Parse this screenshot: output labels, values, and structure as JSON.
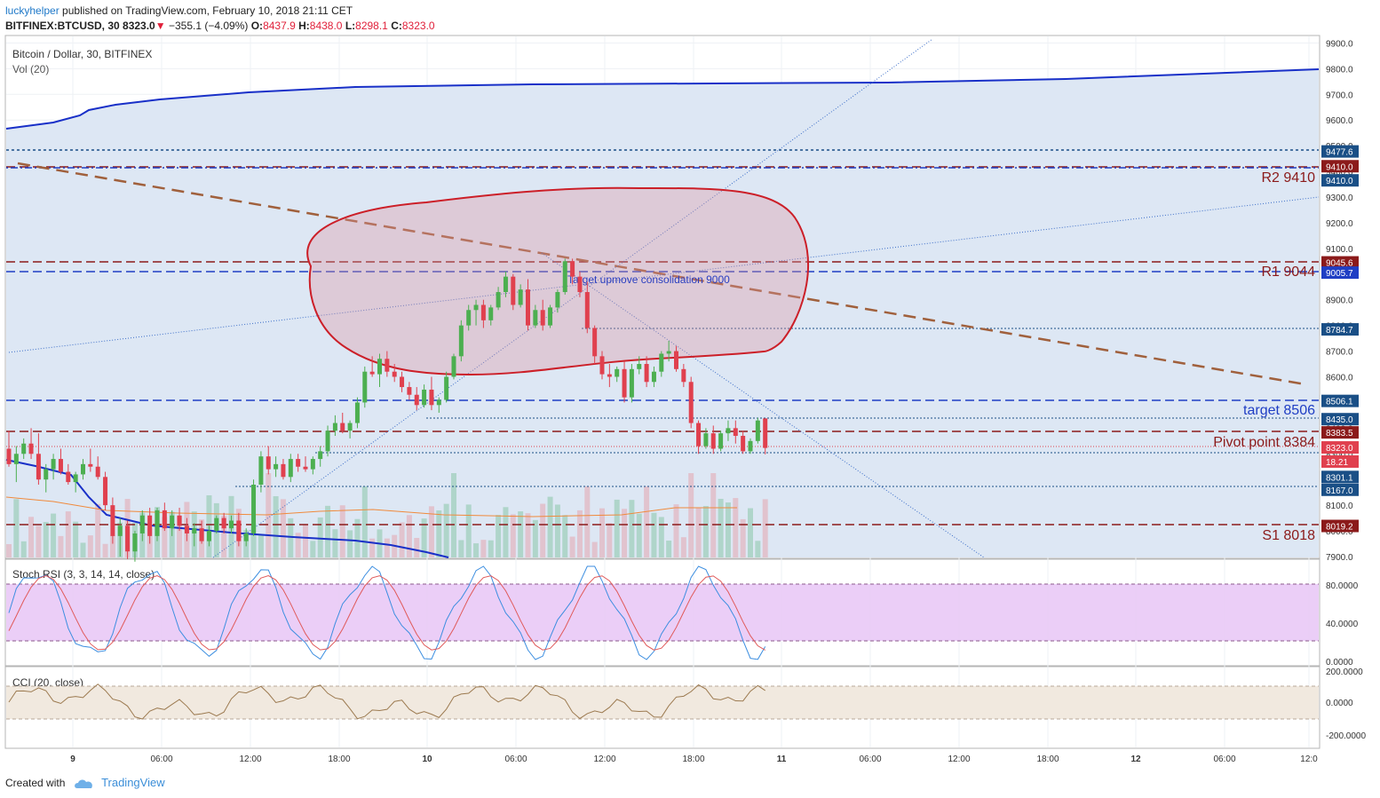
{
  "header": {
    "author": "luckyhelper",
    "published": "published on TradingView.com, February 10, 2018 21:11 CET",
    "symbol_line": "BITFINEX:BTCUSD, 30",
    "last": "8323.0",
    "arrow": "▼",
    "change": "−355.1 (−4.09%)",
    "o_label": "O:",
    "o": "8437.9",
    "h_label": "H:",
    "h": "8438.0",
    "l_label": "L:",
    "l": "8298.1",
    "c_label": "C:",
    "c": "8323.0"
  },
  "legend": {
    "title": "Bitcoin / Dollar, 30, BITFINEX",
    "vol": "Vol (20)"
  },
  "colors": {
    "up": "#4caf50",
    "down": "#e0404e",
    "band": "#dbe6f3",
    "vwap": "#1930c8",
    "ellipse": "#cc1f28"
  },
  "annotations": {
    "ellipse_text": "Target upmove consolidation 9000",
    "r2": "R2 9410",
    "r1": "R1 9044",
    "target": "target 8506",
    "pivot": "Pivot point 8384",
    "s1": "S1 8018"
  },
  "price_axis": {
    "ticks": [
      "9900.0",
      "9800.0",
      "9700.0",
      "9600.0",
      "9500.0",
      "9400.0",
      "9300.0",
      "9200.0",
      "9100.0",
      "9000.0",
      "8900.0",
      "8800.0",
      "8700.0",
      "8600.0",
      "8500.0",
      "8400.0",
      "8300.0",
      "8200.0",
      "8100.0",
      "8000.0",
      "7900.0"
    ],
    "badges": [
      {
        "text": "9477.6",
        "color": "#1a4f86",
        "price": 9477.6
      },
      {
        "text": "9410.0",
        "color": "#8b1a1a",
        "price": 9420
      },
      {
        "text": "9410.0",
        "color": "#1a4f86",
        "price": 9365
      },
      {
        "text": "9045.6",
        "color": "#8b1a1a",
        "price": 9045.6
      },
      {
        "text": "9005.7",
        "color": "#1f3ec4",
        "price": 9005.7
      },
      {
        "text": "8784.7",
        "color": "#1a4f86",
        "price": 8784.7
      },
      {
        "text": "8506.1",
        "color": "#1a4f86",
        "price": 8506.1
      },
      {
        "text": "8435.0",
        "color": "#1a4f86",
        "price": 8435
      },
      {
        "text": "8383.5",
        "color": "#8b1a1a",
        "price": 8383.5
      },
      {
        "text": "8323.0",
        "color": "#e0404e",
        "price": 8325
      },
      {
        "text": "18.21",
        "color": "#e0404e",
        "price": 8270
      },
      {
        "text": "8301.1",
        "color": "#1a4f86",
        "price": 8210
      },
      {
        "text": "8167.0",
        "color": "#1a4f86",
        "price": 8160
      },
      {
        "text": "8019.2",
        "color": "#8b1a1a",
        "price": 8019.2
      }
    ]
  },
  "stoch": {
    "title": "Stoch RSI (3, 3, 14, 14, close)",
    "ticks": [
      "80.0000",
      "40.0000",
      "0.0000"
    ]
  },
  "cci": {
    "title": "CCI (20, close)",
    "ticks": [
      "200.0000",
      "0.0000",
      "-200.0000"
    ]
  },
  "time_axis": {
    "labels": [
      {
        "t": "9",
        "bold": true
      },
      {
        "t": "06:00",
        "bold": false
      },
      {
        "t": "12:00",
        "bold": false
      },
      {
        "t": "18:00",
        "bold": false
      },
      {
        "t": "10",
        "bold": true
      },
      {
        "t": "06:00",
        "bold": false
      },
      {
        "t": "12:00",
        "bold": false
      },
      {
        "t": "18:00",
        "bold": false
      },
      {
        "t": "11",
        "bold": true
      },
      {
        "t": "06:00",
        "bold": false
      },
      {
        "t": "12:00",
        "bold": false
      },
      {
        "t": "18:00",
        "bold": false
      },
      {
        "t": "12",
        "bold": true
      },
      {
        "t": "06:00",
        "bold": false
      },
      {
        "t": "12:0",
        "bold": false
      }
    ]
  },
  "footer": {
    "created": "Created with",
    "brand": "TradingView"
  },
  "chart_data": {
    "type": "candlestick",
    "title": "Bitcoin / Dollar, 30, BITFINEX",
    "ylim": [
      7900,
      9950
    ],
    "candles_ohlc": [
      [
        8320,
        8390,
        8250,
        8260
      ],
      [
        8260,
        8330,
        8190,
        8300
      ],
      [
        8300,
        8360,
        8280,
        8340
      ],
      [
        8340,
        8400,
        8280,
        8300
      ],
      [
        8300,
        8380,
        8180,
        8200
      ],
      [
        8200,
        8260,
        8150,
        8240
      ],
      [
        8240,
        8300,
        8200,
        8280
      ],
      [
        8280,
        8320,
        8220,
        8230
      ],
      [
        8230,
        8260,
        8180,
        8190
      ],
      [
        8190,
        8230,
        8150,
        8220
      ],
      [
        8220,
        8280,
        8200,
        8260
      ],
      [
        8260,
        8320,
        8230,
        8250
      ],
      [
        8250,
        8290,
        8200,
        8210
      ],
      [
        8210,
        8230,
        8080,
        8100
      ],
      [
        8100,
        8130,
        7950,
        7980
      ],
      [
        7980,
        8050,
        7900,
        8020
      ],
      [
        8020,
        8040,
        7890,
        7920
      ],
      [
        7920,
        8000,
        7880,
        7990
      ],
      [
        7990,
        8080,
        7960,
        8060
      ],
      [
        8060,
        8090,
        7950,
        7980
      ],
      [
        7980,
        8090,
        7960,
        8080
      ],
      [
        8080,
        8110,
        8000,
        8010
      ],
      [
        8010,
        8080,
        7980,
        8060
      ],
      [
        8060,
        8090,
        8000,
        8020
      ],
      [
        8020,
        8050,
        7960,
        7990
      ],
      [
        7990,
        8030,
        7940,
        8010
      ],
      [
        8010,
        8040,
        7950,
        7960
      ],
      [
        7960,
        8020,
        7940,
        8000
      ],
      [
        8000,
        8060,
        7990,
        8050
      ],
      [
        8050,
        8070,
        7990,
        8010
      ],
      [
        8010,
        8060,
        7990,
        8040
      ],
      [
        8040,
        8070,
        7940,
        7960
      ],
      [
        7960,
        8010,
        7940,
        7990
      ],
      [
        7990,
        8200,
        7980,
        8180
      ],
      [
        8180,
        8310,
        8150,
        8290
      ],
      [
        8290,
        8330,
        8220,
        8240
      ],
      [
        8240,
        8290,
        8210,
        8260
      ],
      [
        8260,
        8280,
        8200,
        8210
      ],
      [
        8210,
        8300,
        8190,
        8280
      ],
      [
        8280,
        8300,
        8230,
        8250
      ],
      [
        8250,
        8290,
        8230,
        8240
      ],
      [
        8240,
        8290,
        8220,
        8280
      ],
      [
        8280,
        8330,
        8250,
        8310
      ],
      [
        8310,
        8410,
        8290,
        8390
      ],
      [
        8390,
        8450,
        8370,
        8420
      ],
      [
        8420,
        8460,
        8380,
        8390
      ],
      [
        8390,
        8430,
        8360,
        8420
      ],
      [
        8420,
        8520,
        8400,
        8500
      ],
      [
        8500,
        8640,
        8480,
        8620
      ],
      [
        8620,
        8680,
        8600,
        8610
      ],
      [
        8610,
        8690,
        8560,
        8670
      ],
      [
        8670,
        8700,
        8600,
        8620
      ],
      [
        8620,
        8650,
        8580,
        8600
      ],
      [
        8600,
        8620,
        8540,
        8560
      ],
      [
        8560,
        8580,
        8510,
        8530
      ],
      [
        8530,
        8560,
        8470,
        8490
      ],
      [
        8490,
        8570,
        8480,
        8550
      ],
      [
        8550,
        8600,
        8470,
        8490
      ],
      [
        8490,
        8520,
        8460,
        8510
      ],
      [
        8510,
        8620,
        8500,
        8600
      ],
      [
        8600,
        8690,
        8590,
        8680
      ],
      [
        8680,
        8820,
        8660,
        8800
      ],
      [
        8800,
        8880,
        8780,
        8860
      ],
      [
        8860,
        8900,
        8800,
        8880
      ],
      [
        8880,
        8900,
        8790,
        8820
      ],
      [
        8820,
        8880,
        8800,
        8870
      ],
      [
        8870,
        8950,
        8860,
        8930
      ],
      [
        8930,
        9010,
        8910,
        8990
      ],
      [
        8990,
        9000,
        8860,
        8880
      ],
      [
        8880,
        8960,
        8870,
        8940
      ],
      [
        8940,
        8980,
        8780,
        8800
      ],
      [
        8800,
        8880,
        8790,
        8860
      ],
      [
        8860,
        8900,
        8780,
        8800
      ],
      [
        8800,
        8880,
        8790,
        8870
      ],
      [
        8870,
        8940,
        8850,
        8930
      ],
      [
        8930,
        9060,
        8920,
        9050
      ],
      [
        9050,
        9060,
        8960,
        8990
      ],
      [
        8990,
        9010,
        8910,
        8930
      ],
      [
        8930,
        8970,
        8770,
        8790
      ],
      [
        8790,
        8800,
        8650,
        8680
      ],
      [
        8680,
        8700,
        8590,
        8610
      ],
      [
        8610,
        8650,
        8560,
        8600
      ],
      [
        8600,
        8640,
        8580,
        8630
      ],
      [
        8630,
        8660,
        8500,
        8520
      ],
      [
        8520,
        8650,
        8500,
        8630
      ],
      [
        8630,
        8680,
        8610,
        8650
      ],
      [
        8650,
        8680,
        8560,
        8580
      ],
      [
        8580,
        8640,
        8560,
        8620
      ],
      [
        8620,
        8700,
        8600,
        8690
      ],
      [
        8690,
        8740,
        8660,
        8700
      ],
      [
        8700,
        8720,
        8620,
        8630
      ],
      [
        8630,
        8650,
        8560,
        8580
      ],
      [
        8580,
        8600,
        8400,
        8420
      ],
      [
        8420,
        8430,
        8300,
        8330
      ],
      [
        8330,
        8400,
        8320,
        8380
      ],
      [
        8380,
        8410,
        8300,
        8320
      ],
      [
        8320,
        8390,
        8310,
        8380
      ],
      [
        8380,
        8430,
        8350,
        8400
      ],
      [
        8400,
        8430,
        8340,
        8370
      ],
      [
        8370,
        8390,
        8300,
        8310
      ],
      [
        8310,
        8360,
        8300,
        8350
      ],
      [
        8350,
        8440,
        8340,
        8430
      ],
      [
        8437.9,
        8438,
        8298.1,
        8323
      ]
    ],
    "horizontal_levels": {
      "R2": 9410,
      "R1": 9044,
      "target": 8506,
      "pivot": 8384,
      "S1": 8018
    }
  }
}
